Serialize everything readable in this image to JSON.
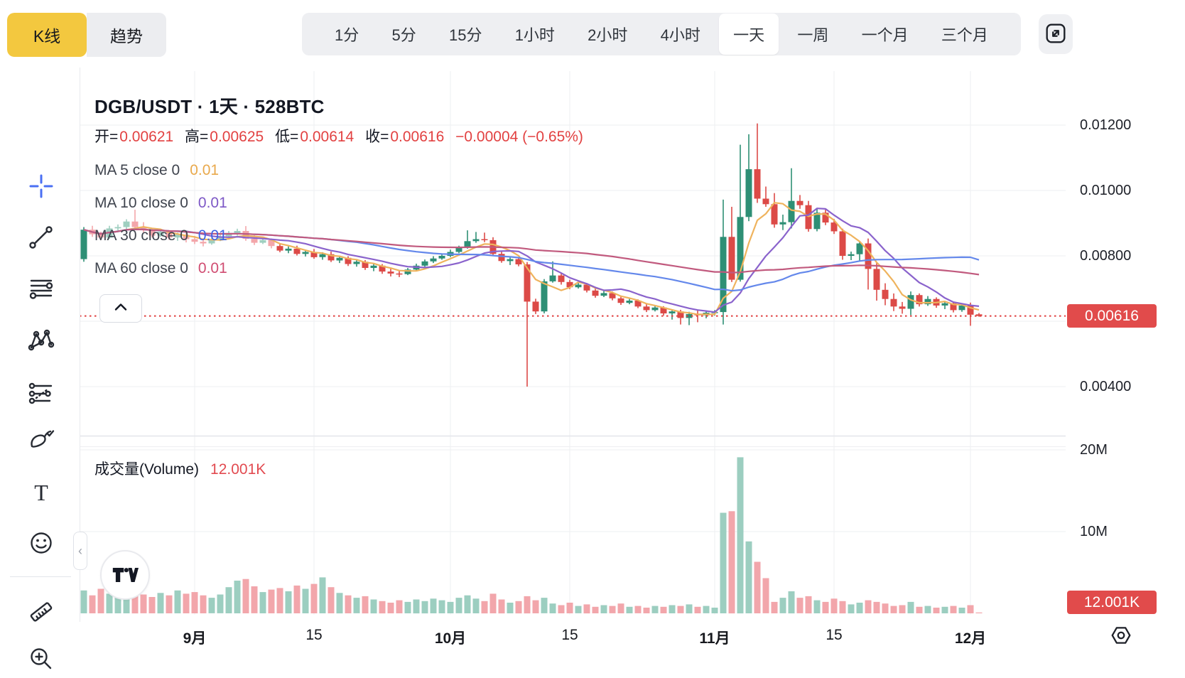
{
  "view_toggle": {
    "kline": "K线",
    "trend": "趋势"
  },
  "timeframes": {
    "options": [
      "1分",
      "5分",
      "15分",
      "1小时",
      "2小时",
      "4小时",
      "一天",
      "一周",
      "一个月",
      "三个月"
    ],
    "active": "一天"
  },
  "toolbar_tools": [
    "crosshair",
    "trend-line",
    "fib-lines",
    "xabcd-pattern",
    "projection",
    "brush",
    "text",
    "emoji",
    "divider",
    "ruler",
    "zoom-in"
  ],
  "toolbar_active_tool": "crosshair",
  "chart_header": {
    "title": "DGB/USDT · 1天 · 528BTC",
    "open_label": "开=",
    "open": "0.00621",
    "high_label": "高=",
    "high": "0.00625",
    "low_label": "低=",
    "low": "0.00614",
    "close_label": "收=",
    "close": "0.00616",
    "change": "−0.00004 (−0.65%)"
  },
  "ma_legend": [
    {
      "label": "MA 5 close 0",
      "value": "0.01",
      "text_color": "#E9A94C",
      "line_color": "#EFB35D"
    },
    {
      "label": "MA 10 close 0",
      "value": "0.01",
      "text_color": "#7D58C6",
      "line_color": "#8A63CC"
    },
    {
      "label": "MA 30 close 0",
      "value": "0.01",
      "text_color": "#3C63E4",
      "line_color": "#6488EB"
    },
    {
      "label": "MA 60 close 0",
      "value": "0.01",
      "text_color": "#D04C71",
      "line_color": "#C15A7E"
    }
  ],
  "volume_pane": {
    "label": "成交量(Volume)",
    "value": "12.001K"
  },
  "price_axis": {
    "labels": [
      {
        "text": "0.01200",
        "price": 0.012
      },
      {
        "text": "0.01000",
        "price": 0.01
      },
      {
        "text": "0.00800",
        "price": 0.008
      },
      {
        "text": "0.00400",
        "price": 0.004
      }
    ],
    "badge": "0.00616"
  },
  "volume_axis": {
    "labels": [
      {
        "text": "20M",
        "value": 20
      },
      {
        "text": "10M",
        "value": 10
      }
    ],
    "badge": "12.001K"
  },
  "time_axis": [
    {
      "text": "9月",
      "index": 13,
      "bold": true
    },
    {
      "text": "15",
      "index": 27,
      "bold": false
    },
    {
      "text": "10月",
      "index": 43,
      "bold": true
    },
    {
      "text": "15",
      "index": 57,
      "bold": false
    },
    {
      "text": "11月",
      "index": 74,
      "bold": true
    },
    {
      "text": "15",
      "index": 88,
      "bold": false
    },
    {
      "text": "12月",
      "index": 104,
      "bold": true
    }
  ],
  "colors": {
    "accent_yellow": "#F3C83F",
    "red_text": "#E24141",
    "badge_red": "#E14B4B",
    "candle_up": "#2E8F75",
    "candle_down": "#DC4A47",
    "candle_up_faded": "#9FCFC0",
    "candle_down_faded": "#F3A6AA",
    "volume_up": "#9CCEC0",
    "volume_down": "#F2A6AB",
    "grid": "#EEEFF2",
    "separator": "#E3E5EA",
    "price_line_dotted": "#E03E3E",
    "crosshair_blue": "#4A6FF3"
  },
  "chart_data": {
    "type": "candlestick+volume",
    "title": "DGB/USDT · 1天 · 528BTC",
    "price_unit": 1e-05,
    "volume_unit": "millions",
    "price_line": 0.00616,
    "last_volume_label": "12.001K",
    "ma_windows": [
      5,
      10,
      30,
      60
    ],
    "grid_prices": [
      0.012,
      0.01,
      0.008,
      0.006,
      0.004
    ],
    "grid_volumes": [
      20,
      10
    ],
    "faded_candles": [
      1,
      22
    ],
    "ylim_price": [
      0.004,
      0.012
    ],
    "ylim_volume": [
      0,
      20
    ],
    "candles_ohlcv": [
      [
        790,
        888,
        782,
        880,
        2.8
      ],
      [
        880,
        892,
        858,
        866,
        2.2
      ],
      [
        866,
        874,
        848,
        856,
        3.0
      ],
      [
        856,
        892,
        852,
        884,
        2.4
      ],
      [
        884,
        896,
        872,
        888,
        2.6
      ],
      [
        888,
        912,
        866,
        905,
        3.2
      ],
      [
        905,
        941,
        882,
        888,
        2.7
      ],
      [
        888,
        903,
        872,
        878,
        2.3
      ],
      [
        878,
        885,
        856,
        862,
        2.0
      ],
      [
        862,
        881,
        858,
        874,
        2.5
      ],
      [
        874,
        879,
        849,
        856,
        2.2
      ],
      [
        856,
        871,
        846,
        865,
        2.8
      ],
      [
        865,
        872,
        841,
        851,
        2.4
      ],
      [
        851,
        861,
        836,
        843,
        2.6
      ],
      [
        843,
        853,
        829,
        838,
        2.2
      ],
      [
        838,
        857,
        834,
        850,
        1.9
      ],
      [
        850,
        867,
        845,
        860,
        2.3
      ],
      [
        860,
        876,
        855,
        870,
        3.2
      ],
      [
        870,
        883,
        862,
        876,
        4.0
      ],
      [
        876,
        891,
        846,
        852,
        4.2
      ],
      [
        852,
        863,
        833,
        840,
        3.3
      ],
      [
        840,
        856,
        836,
        848,
        2.6
      ],
      [
        848,
        853,
        823,
        830,
        2.9
      ],
      [
        830,
        837,
        811,
        816,
        3.1
      ],
      [
        816,
        829,
        808,
        822,
        2.7
      ],
      [
        822,
        831,
        801,
        806,
        3.4
      ],
      [
        806,
        819,
        798,
        812,
        3.0
      ],
      [
        812,
        821,
        791,
        796,
        3.6
      ],
      [
        796,
        811,
        788,
        805,
        4.4
      ],
      [
        805,
        813,
        781,
        786,
        3.2
      ],
      [
        786,
        801,
        778,
        794,
        2.5
      ],
      [
        794,
        799,
        769,
        775,
        2.2
      ],
      [
        775,
        789,
        767,
        782,
        1.9
      ],
      [
        782,
        787,
        757,
        763,
        2.1
      ],
      [
        763,
        777,
        753,
        770,
        1.7
      ],
      [
        770,
        775,
        745,
        752,
        1.5
      ],
      [
        752,
        763,
        737,
        746,
        1.3
      ],
      [
        746,
        753,
        735,
        744,
        1.6
      ],
      [
        744,
        763,
        741,
        758,
        1.4
      ],
      [
        758,
        776,
        754,
        770,
        1.7
      ],
      [
        770,
        789,
        766,
        783,
        1.5
      ],
      [
        783,
        799,
        778,
        792,
        1.8
      ],
      [
        792,
        807,
        788,
        800,
        1.6
      ],
      [
        800,
        819,
        796,
        812,
        1.4
      ],
      [
        812,
        831,
        808,
        825,
        1.9
      ],
      [
        825,
        878,
        822,
        845,
        2.2
      ],
      [
        845,
        873,
        840,
        851,
        1.8
      ],
      [
        851,
        871,
        842,
        848,
        1.5
      ],
      [
        848,
        857,
        801,
        806,
        2.4
      ],
      [
        806,
        813,
        779,
        784,
        1.7
      ],
      [
        784,
        796,
        772,
        790,
        1.3
      ],
      [
        790,
        795,
        768,
        774,
        1.5
      ],
      [
        774,
        781,
        400,
        660,
        2.1
      ],
      [
        660,
        669,
        622,
        630,
        1.6
      ],
      [
        630,
        729,
        624,
        722,
        1.9
      ],
      [
        722,
        783,
        718,
        740,
        1.2
      ],
      [
        740,
        749,
        712,
        720,
        1.0
      ],
      [
        720,
        727,
        698,
        704,
        1.3
      ],
      [
        704,
        719,
        700,
        712,
        0.9
      ],
      [
        712,
        717,
        688,
        694,
        1.1
      ],
      [
        694,
        701,
        672,
        678,
        0.8
      ],
      [
        678,
        693,
        674,
        686,
        1.0
      ],
      [
        686,
        691,
        664,
        670,
        0.9
      ],
      [
        670,
        677,
        650,
        656,
        1.2
      ],
      [
        656,
        669,
        652,
        663,
        0.8
      ],
      [
        663,
        667,
        640,
        645,
        0.9
      ],
      [
        645,
        653,
        628,
        634,
        0.7
      ],
      [
        634,
        649,
        630,
        642,
        0.9
      ],
      [
        642,
        646,
        617,
        624,
        0.8
      ],
      [
        624,
        637,
        605,
        630,
        1.0
      ],
      [
        630,
        635,
        590,
        610,
        0.9
      ],
      [
        610,
        629,
        588,
        622,
        1.1
      ],
      [
        622,
        633,
        597,
        618,
        0.8
      ],
      [
        618,
        631,
        609,
        626,
        0.9
      ],
      [
        626,
        634,
        617,
        628,
        0.7
      ],
      [
        628,
        972,
        590,
        858,
        12.3
      ],
      [
        858,
        950,
        720,
        727,
        12.5
      ],
      [
        727,
        1140,
        721,
        919,
        19.1
      ],
      [
        919,
        1172,
        906,
        1065,
        8.8
      ],
      [
        1065,
        1205,
        962,
        975,
        6.3
      ],
      [
        975,
        1012,
        950,
        958,
        4.3
      ],
      [
        958,
        992,
        886,
        896,
        1.4
      ],
      [
        896,
        926,
        879,
        903,
        1.9
      ],
      [
        903,
        1068,
        884,
        968,
        2.7
      ],
      [
        968,
        986,
        944,
        955,
        1.9
      ],
      [
        955,
        968,
        874,
        882,
        2.1
      ],
      [
        882,
        946,
        875,
        932,
        1.6
      ],
      [
        932,
        941,
        894,
        902,
        1.4
      ],
      [
        902,
        913,
        867,
        875,
        1.8
      ],
      [
        875,
        883,
        788,
        800,
        1.5
      ],
      [
        800,
        813,
        787,
        805,
        1.1
      ],
      [
        805,
        843,
        783,
        838,
        1.3
      ],
      [
        838,
        853,
        697,
        760,
        1.6
      ],
      [
        760,
        779,
        663,
        696,
        1.4
      ],
      [
        696,
        716,
        649,
        668,
        1.2
      ],
      [
        668,
        685,
        631,
        645,
        0.9
      ],
      [
        645,
        659,
        623,
        638,
        1.0
      ],
      [
        638,
        691,
        619,
        680,
        1.4
      ],
      [
        680,
        685,
        645,
        652,
        0.8
      ],
      [
        652,
        677,
        647,
        668,
        0.9
      ],
      [
        668,
        673,
        641,
        648,
        0.7
      ],
      [
        648,
        661,
        637,
        655,
        0.8
      ],
      [
        655,
        659,
        627,
        634,
        0.9
      ],
      [
        634,
        653,
        629,
        648,
        0.7
      ],
      [
        648,
        657,
        586,
        620,
        1.0
      ],
      [
        621,
        625,
        614,
        616,
        0.012
      ]
    ]
  }
}
